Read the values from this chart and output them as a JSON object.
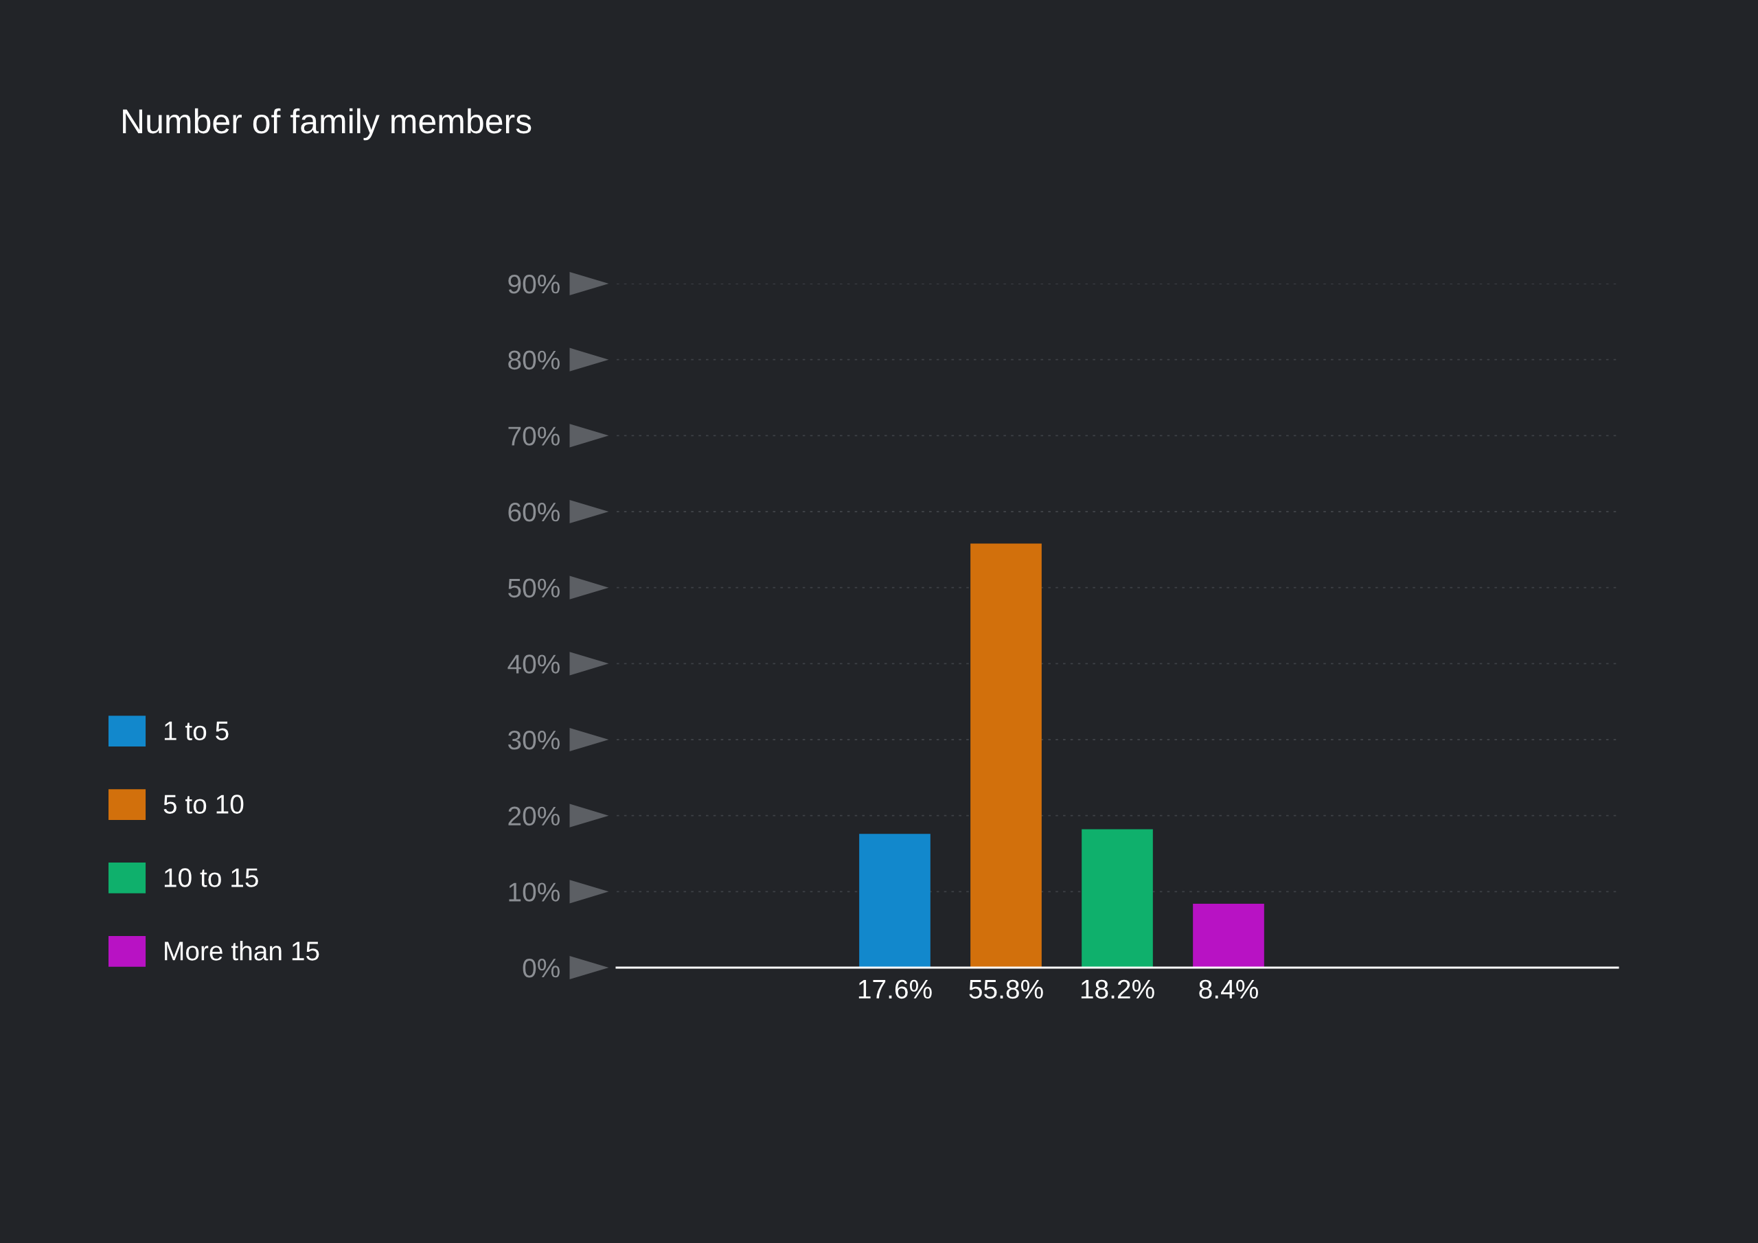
{
  "chart_data": {
    "type": "bar",
    "title": "Number of family members",
    "categories": [
      null,
      null,
      null,
      null,
      null,
      null,
      null,
      null,
      null
    ],
    "stacked": true,
    "series": [
      {
        "name": "1 to 5",
        "color": "#1288cc",
        "values": [
          null,
          null,
          17.6,
          null,
          null,
          null,
          null,
          null,
          null
        ],
        "value_labels": [
          null,
          null,
          "17.6%",
          null,
          null,
          null,
          null,
          null,
          null
        ]
      },
      {
        "name": "5 to 10",
        "color": "#d2700c",
        "values": [
          null,
          null,
          null,
          55.8,
          null,
          null,
          null,
          null,
          null
        ],
        "value_labels": [
          null,
          null,
          null,
          "55.8%",
          null,
          null,
          null,
          null,
          null
        ]
      },
      {
        "name": "10 to 15",
        "color": "#0fb06c",
        "values": [
          null,
          null,
          null,
          null,
          18.2,
          null,
          null,
          null,
          null
        ],
        "value_labels": [
          null,
          null,
          null,
          null,
          "18.2%",
          null,
          null,
          null,
          null
        ]
      },
      {
        "name": "More than 15",
        "color": "#b812c4",
        "values": [
          null,
          null,
          null,
          null,
          null,
          8.4,
          null,
          null,
          null
        ],
        "value_labels": [
          null,
          null,
          null,
          null,
          null,
          "8.4%",
          null,
          null,
          null
        ]
      }
    ],
    "ylim": [
      0,
      90
    ],
    "yticks": [
      {
        "value": 0,
        "label": "0%"
      },
      {
        "value": 10,
        "label": "10%"
      },
      {
        "value": 20,
        "label": "20%"
      },
      {
        "value": 30,
        "label": "30%"
      },
      {
        "value": 40,
        "label": "40%"
      },
      {
        "value": 50,
        "label": "50%"
      },
      {
        "value": 60,
        "label": "60%"
      },
      {
        "value": 70,
        "label": "70%"
      },
      {
        "value": 80,
        "label": "80%"
      },
      {
        "value": 90,
        "label": "90%"
      }
    ],
    "grid": "y",
    "legend": "left"
  }
}
